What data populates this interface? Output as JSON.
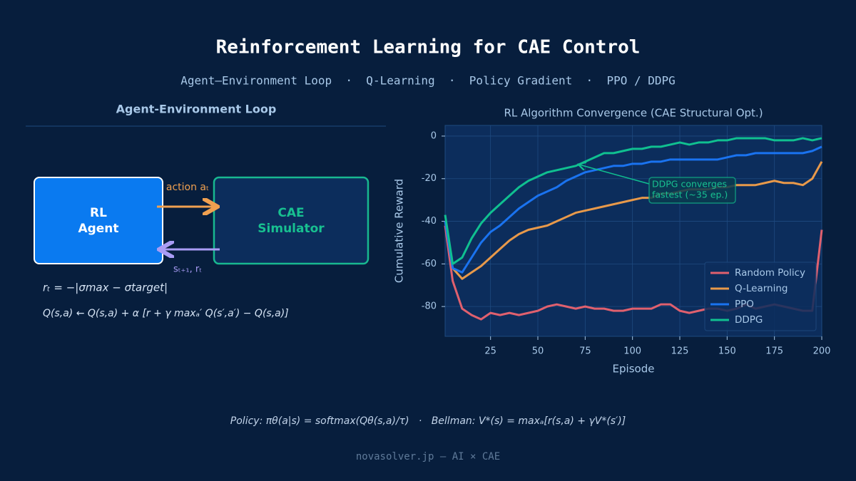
{
  "header": {
    "title": "Reinforcement Learning for CAE Control",
    "subtitle": "Agent–Environment Loop  ·  Q-Learning  ·  Policy Gradient  ·  PPO / DDPG"
  },
  "diagram": {
    "title": "Agent-Environment Loop",
    "nodes": [
      {
        "label": [
          "RL",
          "Agent"
        ]
      },
      {
        "label": [
          "CAE",
          "Simulator"
        ]
      }
    ],
    "edges": [
      {
        "label": "action aₜ"
      },
      {
        "label": "sₜ₊₁, rₜ"
      }
    ],
    "formulas": [
      "rₜ = −|σmax − σtarget|",
      "Q(s,a) ← Q(s,a) + α [r + γ maxₐ′ Q(s′,a′) − Q(s,a)]"
    ]
  },
  "chart_data": {
    "type": "line",
    "title": "RL Algorithm Convergence (CAE Structural Opt.)",
    "xlabel": "Episode",
    "ylabel": "Cumulative Reward",
    "x": [
      1,
      5,
      10,
      15,
      20,
      25,
      30,
      35,
      40,
      45,
      50,
      55,
      60,
      65,
      70,
      75,
      80,
      85,
      90,
      95,
      100,
      105,
      110,
      115,
      120,
      125,
      130,
      135,
      140,
      145,
      150,
      155,
      160,
      165,
      170,
      175,
      180,
      185,
      190,
      195,
      200
    ],
    "series": [
      {
        "name": "Random Policy",
        "color": "#e0606e",
        "values": [
          -42,
          -68,
          -81,
          -84,
          -86,
          -83,
          -84,
          -83,
          -84,
          -83,
          -82,
          -80,
          -79,
          -80,
          -81,
          -80,
          -81,
          -81,
          -82,
          -82,
          -81,
          -81,
          -81,
          -79,
          -79,
          -82,
          -83,
          -82,
          -81,
          -81,
          -82,
          -81,
          -79,
          -81,
          -80,
          -79,
          -80,
          -81,
          -82,
          -82,
          -44
        ]
      },
      {
        "name": "Q-Learning",
        "color": "#e8994a",
        "values": [
          -40,
          -62,
          -67,
          -64,
          -61,
          -57,
          -53,
          -49,
          -46,
          -44,
          -43,
          -42,
          -40,
          -38,
          -36,
          -35,
          -34,
          -33,
          -32,
          -31,
          -30,
          -29,
          -29,
          -27,
          -27,
          -26,
          -25,
          -25,
          -25,
          -24,
          -24,
          -23,
          -23,
          -23,
          -22,
          -21,
          -22,
          -22,
          -23,
          -20,
          -12
        ]
      },
      {
        "name": "PPO",
        "color": "#1a73f0",
        "values": [
          -40,
          -62,
          -64,
          -57,
          -50,
          -45,
          -42,
          -38,
          -34,
          -31,
          -28,
          -26,
          -24,
          -21,
          -19,
          -17,
          -16,
          -15,
          -14,
          -14,
          -13,
          -13,
          -12,
          -12,
          -11,
          -11,
          -11,
          -11,
          -11,
          -11,
          -10,
          -9,
          -9,
          -8,
          -8,
          -8,
          -8,
          -8,
          -8,
          -7,
          -5
        ]
      },
      {
        "name": "DDPG",
        "color": "#10c090",
        "values": [
          -37,
          -60,
          -57,
          -48,
          -41,
          -36,
          -32,
          -28,
          -24,
          -21,
          -19,
          -17,
          -16,
          -15,
          -14,
          -12,
          -10,
          -8,
          -8,
          -7,
          -6,
          -6,
          -5,
          -5,
          -4,
          -3,
          -4,
          -3,
          -3,
          -2,
          -2,
          -1,
          -1,
          -1,
          -1,
          -2,
          -2,
          -2,
          -1,
          -2,
          -1
        ]
      }
    ],
    "xlim": [
      1,
      200
    ],
    "ylim": [
      -94,
      5
    ],
    "xticks": [
      25,
      50,
      75,
      100,
      125,
      150,
      175,
      200
    ],
    "yticks": [
      0,
      -20,
      -40,
      -60,
      -80
    ],
    "grid": true,
    "legend": "lower right",
    "annotation": [
      "DDPG converges",
      "fastest (~35 ep.)"
    ]
  },
  "footer": {
    "formula": "Policy: πθ(a|s) = softmax(Qθ(s,a)/τ)   ·   Bellman: V*(s) = maxₐ[r(s,a) + γV*(s′)]",
    "credit": "novasolver.jp — AI × CAE"
  }
}
